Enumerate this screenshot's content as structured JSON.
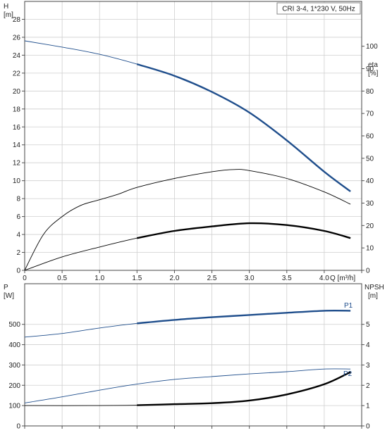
{
  "chart_data": [
    {
      "type": "line",
      "title": "CRI 3-4, 1*230 V, 50Hz",
      "xlabel": "Q [m³/h]",
      "ylabel_left": [
        "H",
        "[m]"
      ],
      "ylabel_right": [
        "eta",
        "[%]"
      ],
      "xlim": [
        0,
        4.5
      ],
      "ylim_left": [
        0,
        30
      ],
      "ylim_right": [
        0,
        120
      ],
      "grid": true,
      "x_ticks": [
        "0",
        "0.5",
        "1.0",
        "1.5",
        "2.0",
        "2.5",
        "3.0",
        "3.5",
        "4.0"
      ],
      "y_left_ticks": [
        "0",
        "2",
        "4",
        "6",
        "8",
        "10",
        "12",
        "14",
        "16",
        "18",
        "20",
        "22",
        "24",
        "26",
        "28"
      ],
      "y_right_ticks": [
        "0",
        "10",
        "20",
        "30",
        "40",
        "50",
        "60",
        "70",
        "80",
        "90",
        "100"
      ],
      "series": [
        {
          "axis": "left",
          "color": "#1f4e8c",
          "thin_until": 1.15,
          "points": [
            [
              0,
              25.6
            ],
            [
              0.5,
              24.9
            ],
            [
              1.0,
              24.1
            ],
            [
              1.5,
              23.0
            ],
            [
              2.0,
              21.7
            ],
            [
              2.5,
              19.9
            ],
            [
              3.0,
              17.6
            ],
            [
              3.5,
              14.5
            ],
            [
              4.0,
              11.0
            ],
            [
              4.35,
              8.8
            ]
          ]
        },
        {
          "axis": "right",
          "color": "#000000",
          "thin_until": 99,
          "points": [
            [
              0,
              0
            ],
            [
              0.25,
              16
            ],
            [
              0.5,
              24
            ],
            [
              0.75,
              29
            ],
            [
              1.0,
              31.5
            ],
            [
              1.25,
              34
            ],
            [
              1.5,
              37
            ],
            [
              2.0,
              41
            ],
            [
              2.5,
              44
            ],
            [
              2.8,
              45
            ],
            [
              3.0,
              44.5
            ],
            [
              3.5,
              41
            ],
            [
              4.0,
              35
            ],
            [
              4.35,
              29.5
            ]
          ]
        },
        {
          "axis": "left",
          "color": "#000000",
          "thin_until": 1.15,
          "points": [
            [
              0,
              0
            ],
            [
              0.5,
              1.5
            ],
            [
              1.0,
              2.6
            ],
            [
              1.5,
              3.6
            ],
            [
              2.0,
              4.4
            ],
            [
              2.5,
              4.9
            ],
            [
              3.0,
              5.25
            ],
            [
              3.5,
              5.05
            ],
            [
              4.0,
              4.4
            ],
            [
              4.35,
              3.6
            ]
          ]
        }
      ]
    },
    {
      "type": "line",
      "ylabel_left": [
        "P",
        "[W]"
      ],
      "ylabel_right": [
        "NPSH",
        "[m]"
      ],
      "xlim": [
        0,
        4.5
      ],
      "ylim_left": [
        0,
        700
      ],
      "ylim_right": [
        0,
        7
      ],
      "grid": true,
      "y_left_ticks": [
        "0",
        "100",
        "200",
        "300",
        "400",
        "500"
      ],
      "y_right_ticks": [
        "0",
        "1",
        "2",
        "3",
        "4",
        "5"
      ],
      "annotations": {
        "p1": "P1",
        "p2": "P2"
      },
      "series": [
        {
          "name": "P1",
          "axis": "left",
          "color": "#1f4e8c",
          "thin_until": 1.15,
          "points": [
            [
              0,
              437
            ],
            [
              0.5,
              455
            ],
            [
              1.0,
              482
            ],
            [
              1.5,
              505
            ],
            [
              2.0,
              522
            ],
            [
              2.5,
              535
            ],
            [
              3.0,
              546
            ],
            [
              3.5,
              557
            ],
            [
              4.0,
              567
            ],
            [
              4.35,
              567
            ]
          ]
        },
        {
          "name": "P2",
          "axis": "left",
          "color": "#1f4e8c",
          "thin_until": 99,
          "points": [
            [
              0,
              113
            ],
            [
              0.5,
              143
            ],
            [
              1.0,
              176
            ],
            [
              1.5,
              206
            ],
            [
              2.0,
              229
            ],
            [
              2.5,
              243
            ],
            [
              3.0,
              256
            ],
            [
              3.5,
              267
            ],
            [
              4.0,
              280
            ],
            [
              4.35,
              280
            ]
          ]
        },
        {
          "axis": "right",
          "color": "#000000",
          "thin_until": 1.15,
          "points": [
            [
              0,
              1.0
            ],
            [
              1.0,
              1.0
            ],
            [
              1.5,
              1.02
            ],
            [
              2.0,
              1.07
            ],
            [
              2.5,
              1.12
            ],
            [
              3.0,
              1.25
            ],
            [
              3.5,
              1.55
            ],
            [
              4.0,
              2.05
            ],
            [
              4.35,
              2.65
            ]
          ]
        }
      ]
    }
  ]
}
